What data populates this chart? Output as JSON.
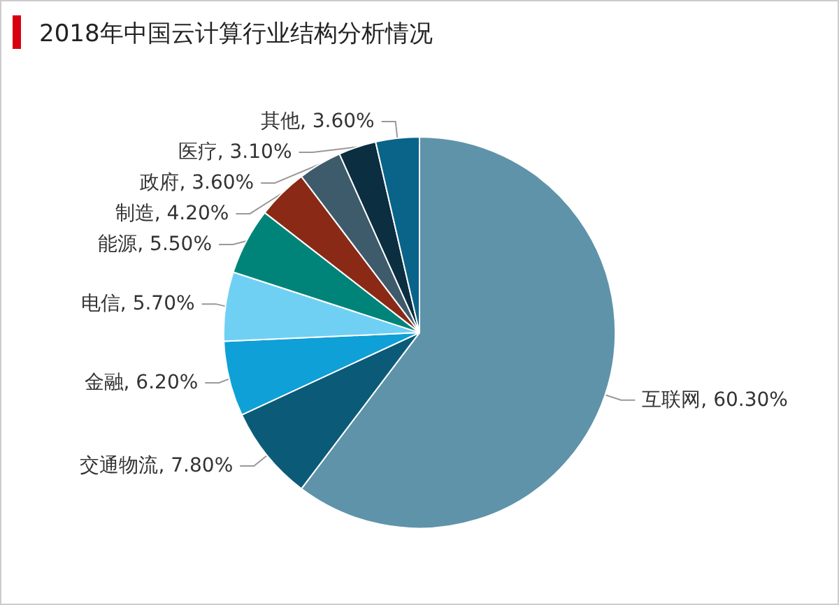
{
  "chart_data": {
    "type": "pie",
    "title": "2018年中国云计算行业结构分析情况",
    "categories": [
      "互联网",
      "交通物流",
      "金融",
      "电信",
      "能源",
      "制造",
      "政府",
      "医疗",
      "其他"
    ],
    "values": [
      60.3,
      7.8,
      6.2,
      5.7,
      5.5,
      4.2,
      3.6,
      3.1,
      3.6
    ],
    "value_labels": [
      "60.30%",
      "7.80%",
      "6.20%",
      "5.70%",
      "5.50%",
      "4.20%",
      "3.60%",
      "3.10%",
      "3.60%"
    ],
    "colors": [
      "#5f93aa",
      "#0b5b78",
      "#0ea0d6",
      "#6fd0f4",
      "#00847a",
      "#8a2a16",
      "#3e5b6c",
      "#0b2e40",
      "#0a6489"
    ],
    "legend": false
  }
}
